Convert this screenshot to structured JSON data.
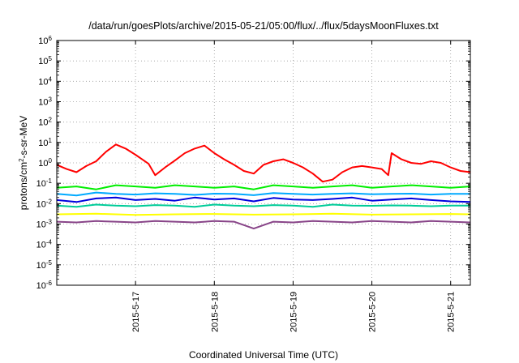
{
  "chart_data": {
    "type": "line",
    "title": "/data/run/goesPlots/archive/2015-05-21/05:00/flux/../flux/5daysMoonFluxes.txt",
    "xlabel": "Coordinated Universal Time (UTC)",
    "ylabel": {
      "prefix": "protons/cm",
      "sup": "2",
      "suffix": "-s-sr-MeV"
    },
    "y_scale": "log",
    "ylim": [
      1e-06,
      1000000.0
    ],
    "xlim": [
      "2015-05-16 00:00",
      "2015-05-21 06:00"
    ],
    "x_ticks": [
      "2015-5-17",
      "2015-5-18",
      "2015-5-19",
      "2015-5-20",
      "2015-5-21"
    ],
    "y_ticks": [
      {
        "base": "10",
        "exp": "-6"
      },
      {
        "base": "10",
        "exp": "-5"
      },
      {
        "base": "10",
        "exp": "-4"
      },
      {
        "base": "10",
        "exp": "-3"
      },
      {
        "base": "10",
        "exp": "-2"
      },
      {
        "base": "10",
        "exp": "-1"
      },
      {
        "base": "10",
        "exp": "0"
      },
      {
        "base": "10",
        "exp": "1"
      },
      {
        "base": "10",
        "exp": "2"
      },
      {
        "base": "10",
        "exp": "3"
      },
      {
        "base": "10",
        "exp": "4"
      },
      {
        "base": "10",
        "exp": "5"
      },
      {
        "base": "10",
        "exp": "6"
      }
    ],
    "grid": true,
    "series": [
      {
        "color": "#ff0000",
        "x": [
          "2015-05-16 00:00",
          "2015-05-16 03:00",
          "2015-05-16 06:00",
          "2015-05-16 09:00",
          "2015-05-16 12:00",
          "2015-05-16 15:00",
          "2015-05-16 18:00",
          "2015-05-16 21:00",
          "2015-05-17 00:00",
          "2015-05-17 02:00",
          "2015-05-17 04:00",
          "2015-05-17 06:00",
          "2015-05-17 09:00",
          "2015-05-17 12:00",
          "2015-05-17 15:00",
          "2015-05-17 18:00",
          "2015-05-17 21:00",
          "2015-05-18 00:00",
          "2015-05-18 03:00",
          "2015-05-18 06:00",
          "2015-05-18 09:00",
          "2015-05-18 12:00",
          "2015-05-18 15:00",
          "2015-05-18 18:00",
          "2015-05-18 21:00",
          "2015-05-19 00:00",
          "2015-05-19 03:00",
          "2015-05-19 06:00",
          "2015-05-19 09:00",
          "2015-05-19 12:00",
          "2015-05-19 15:00",
          "2015-05-19 18:00",
          "2015-05-19 21:00",
          "2015-05-20 00:00",
          "2015-05-20 03:00",
          "2015-05-20 05:00",
          "2015-05-20 06:00",
          "2015-05-20 09:00",
          "2015-05-20 12:00",
          "2015-05-20 15:00",
          "2015-05-20 18:00",
          "2015-05-20 21:00",
          "2015-05-21 00:00",
          "2015-05-21 03:00",
          "2015-05-21 06:00"
        ],
        "values": [
          0.8,
          0.5,
          0.35,
          0.7,
          1.2,
          3.5,
          8.0,
          5.0,
          2.5,
          1.5,
          0.9,
          0.25,
          0.6,
          1.3,
          3.0,
          5.0,
          7.0,
          3.0,
          1.5,
          0.8,
          0.4,
          0.3,
          0.8,
          1.2,
          1.5,
          1.0,
          0.6,
          0.3,
          0.12,
          0.15,
          0.35,
          0.6,
          0.7,
          0.6,
          0.5,
          0.25,
          3.0,
          1.5,
          1.0,
          0.9,
          1.2,
          1.0,
          0.6,
          0.4,
          0.35
        ]
      },
      {
        "color": "#00ee00",
        "x": [
          "2015-05-16 00:00",
          "2015-05-16 06:00",
          "2015-05-16 12:00",
          "2015-05-16 18:00",
          "2015-05-17 00:00",
          "2015-05-17 06:00",
          "2015-05-17 12:00",
          "2015-05-17 18:00",
          "2015-05-18 00:00",
          "2015-05-18 06:00",
          "2015-05-18 12:00",
          "2015-05-18 18:00",
          "2015-05-19 00:00",
          "2015-05-19 06:00",
          "2015-05-19 12:00",
          "2015-05-19 18:00",
          "2015-05-20 00:00",
          "2015-05-20 06:00",
          "2015-05-20 12:00",
          "2015-05-20 18:00",
          "2015-05-21 00:00",
          "2015-05-21 06:00"
        ],
        "values": [
          0.06,
          0.07,
          0.05,
          0.08,
          0.07,
          0.06,
          0.08,
          0.07,
          0.06,
          0.07,
          0.05,
          0.08,
          0.07,
          0.06,
          0.07,
          0.08,
          0.06,
          0.07,
          0.08,
          0.07,
          0.06,
          0.07
        ]
      },
      {
        "color": "#00aaff",
        "x": [
          "2015-05-16 00:00",
          "2015-05-16 06:00",
          "2015-05-16 12:00",
          "2015-05-16 18:00",
          "2015-05-17 00:00",
          "2015-05-17 06:00",
          "2015-05-17 12:00",
          "2015-05-17 18:00",
          "2015-05-18 00:00",
          "2015-05-18 06:00",
          "2015-05-18 12:00",
          "2015-05-18 18:00",
          "2015-05-19 00:00",
          "2015-05-19 06:00",
          "2015-05-19 12:00",
          "2015-05-19 18:00",
          "2015-05-20 00:00",
          "2015-05-20 06:00",
          "2015-05-20 12:00",
          "2015-05-20 18:00",
          "2015-05-21 00:00",
          "2015-05-21 06:00"
        ],
        "values": [
          0.03,
          0.025,
          0.035,
          0.03,
          0.028,
          0.032,
          0.03,
          0.027,
          0.031,
          0.03,
          0.026,
          0.033,
          0.03,
          0.028,
          0.03,
          0.032,
          0.029,
          0.03,
          0.031,
          0.028,
          0.03,
          0.03
        ]
      },
      {
        "color": "#0000dd",
        "x": [
          "2015-05-16 00:00",
          "2015-05-16 06:00",
          "2015-05-16 12:00",
          "2015-05-16 18:00",
          "2015-05-17 00:00",
          "2015-05-17 06:00",
          "2015-05-17 12:00",
          "2015-05-17 18:00",
          "2015-05-18 00:00",
          "2015-05-18 06:00",
          "2015-05-18 12:00",
          "2015-05-18 18:00",
          "2015-05-19 00:00",
          "2015-05-19 06:00",
          "2015-05-19 12:00",
          "2015-05-19 18:00",
          "2015-05-20 00:00",
          "2015-05-20 06:00",
          "2015-05-20 12:00",
          "2015-05-20 18:00",
          "2015-05-21 00:00",
          "2015-05-21 06:00"
        ],
        "values": [
          0.015,
          0.012,
          0.018,
          0.02,
          0.015,
          0.017,
          0.014,
          0.02,
          0.016,
          0.018,
          0.013,
          0.019,
          0.016,
          0.015,
          0.017,
          0.02,
          0.014,
          0.016,
          0.018,
          0.015,
          0.013,
          0.012
        ]
      },
      {
        "color": "#00cc99",
        "x": [
          "2015-05-16 00:00",
          "2015-05-16 06:00",
          "2015-05-16 12:00",
          "2015-05-16 18:00",
          "2015-05-17 00:00",
          "2015-05-17 06:00",
          "2015-05-17 12:00",
          "2015-05-17 18:00",
          "2015-05-18 00:00",
          "2015-05-18 06:00",
          "2015-05-18 12:00",
          "2015-05-18 18:00",
          "2015-05-19 00:00",
          "2015-05-19 06:00",
          "2015-05-19 12:00",
          "2015-05-19 18:00",
          "2015-05-20 00:00",
          "2015-05-20 06:00",
          "2015-05-20 12:00",
          "2015-05-20 18:00",
          "2015-05-21 00:00",
          "2015-05-21 06:00"
        ],
        "values": [
          0.008,
          0.007,
          0.009,
          0.008,
          0.0075,
          0.0085,
          0.008,
          0.007,
          0.009,
          0.008,
          0.0075,
          0.0085,
          0.008,
          0.007,
          0.009,
          0.008,
          0.0078,
          0.0082,
          0.008,
          0.0075,
          0.008,
          0.008
        ]
      },
      {
        "color": "#ffff00",
        "x": [
          "2015-05-16 00:00",
          "2015-05-16 12:00",
          "2015-05-17 00:00",
          "2015-05-17 12:00",
          "2015-05-18 00:00",
          "2015-05-18 12:00",
          "2015-05-19 00:00",
          "2015-05-19 12:00",
          "2015-05-20 00:00",
          "2015-05-20 12:00",
          "2015-05-21 00:00",
          "2015-05-21 06:00"
        ],
        "values": [
          0.003,
          0.0032,
          0.0028,
          0.003,
          0.0031,
          0.0029,
          0.003,
          0.0032,
          0.0029,
          0.003,
          0.0031,
          0.003
        ]
      },
      {
        "color": "#884488",
        "x": [
          "2015-05-16 00:00",
          "2015-05-16 06:00",
          "2015-05-16 12:00",
          "2015-05-16 18:00",
          "2015-05-17 00:00",
          "2015-05-17 06:00",
          "2015-05-17 12:00",
          "2015-05-17 18:00",
          "2015-05-18 00:00",
          "2015-05-18 06:00",
          "2015-05-18 12:00",
          "2015-05-18 18:00",
          "2015-05-19 00:00",
          "2015-05-19 06:00",
          "2015-05-19 12:00",
          "2015-05-19 18:00",
          "2015-05-20 00:00",
          "2015-05-20 06:00",
          "2015-05-20 12:00",
          "2015-05-20 18:00",
          "2015-05-21 00:00",
          "2015-05-21 06:00"
        ],
        "values": [
          0.0013,
          0.0012,
          0.0014,
          0.0013,
          0.0012,
          0.0014,
          0.0013,
          0.0012,
          0.0014,
          0.0013,
          0.0006,
          0.0013,
          0.0012,
          0.0014,
          0.0013,
          0.0012,
          0.0014,
          0.0013,
          0.0012,
          0.0014,
          0.0013,
          0.0012
        ]
      }
    ]
  }
}
